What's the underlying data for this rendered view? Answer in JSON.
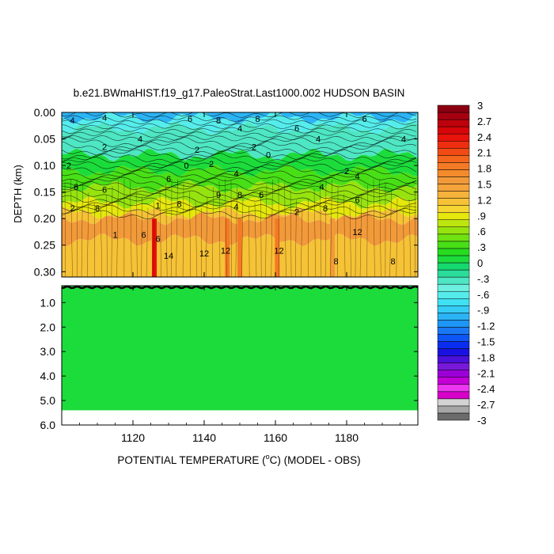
{
  "chart_data": {
    "type": "heatmap",
    "title": "b.e21.BWmaHIST.f19_g17.PaleoStrat.Last1000.002 HUDSON BASIN",
    "xlabel_pre": "POTENTIAL TEMPERATURE (",
    "xlabel_sup": "o",
    "xlabel_post": "C) (MODEL - OBS)",
    "ylabel": "DEPTH (km)",
    "xlim": [
      1100,
      1200
    ],
    "x_ticks": [
      "1120",
      "1140",
      "1160",
      "1180"
    ],
    "x_tick_values": [
      1120,
      1140,
      1160,
      1180
    ],
    "top_panel": {
      "ylim": [
        0.0,
        0.31
      ],
      "y_ticks": [
        "0.00",
        "0.05",
        "0.10",
        "0.15",
        "0.20",
        "0.25",
        "0.30"
      ],
      "y_tick_values": [
        0.0,
        0.05,
        0.1,
        0.15,
        0.2,
        0.25,
        0.3
      ],
      "layers": [
        {
          "depth_from": 0.0,
          "depth_to": 0.01,
          "value": -1.0
        },
        {
          "depth_from": 0.01,
          "depth_to": 0.03,
          "value": -0.6
        },
        {
          "depth_from": 0.03,
          "depth_to": 0.08,
          "value": -0.3
        },
        {
          "depth_from": 0.08,
          "depth_to": 0.11,
          "value": 0.0
        },
        {
          "depth_from": 0.11,
          "depth_to": 0.14,
          "value": 0.3
        },
        {
          "depth_from": 0.14,
          "depth_to": 0.17,
          "value": 0.6
        },
        {
          "depth_from": 0.17,
          "depth_to": 0.19,
          "value": 0.9
        },
        {
          "depth_from": 0.19,
          "depth_to": 0.2,
          "value": 1.2
        },
        {
          "depth_from": 0.2,
          "depth_to": 0.24,
          "value": 1.5
        },
        {
          "depth_from": 0.24,
          "depth_to": 0.31,
          "value": 1.2
        }
      ],
      "hot_columns": [
        {
          "x": 1126,
          "value": 2.4
        },
        {
          "x": 1146.5,
          "value": 1.8
        },
        {
          "x": 1150,
          "value": 1.8
        },
        {
          "x": 1160.5,
          "value": 1.8
        },
        {
          "x": 1176,
          "value": 1.5
        }
      ],
      "contour_labels": [
        {
          "text": "4",
          "x": 1103,
          "d": 0.015
        },
        {
          "text": "4",
          "x": 1112,
          "d": 0.01
        },
        {
          "text": "6",
          "x": 1136,
          "d": 0.012
        },
        {
          "text": "8",
          "x": 1144,
          "d": 0.015
        },
        {
          "text": "4",
          "x": 1150,
          "d": 0.03
        },
        {
          "text": "8",
          "x": 1155,
          "d": 0.012
        },
        {
          "text": "6",
          "x": 1166,
          "d": 0.03
        },
        {
          "text": "4",
          "x": 1172,
          "d": 0.05
        },
        {
          "text": "6",
          "x": 1185,
          "d": 0.012
        },
        {
          "text": "4",
          "x": 1196,
          "d": 0.05
        },
        {
          "text": "2",
          "x": 1112,
          "d": 0.065
        },
        {
          "text": "4",
          "x": 1122,
          "d": 0.05
        },
        {
          "text": "2",
          "x": 1138,
          "d": 0.07
        },
        {
          "text": "2",
          "x": 1154,
          "d": 0.065
        },
        {
          "text": "0",
          "x": 1158,
          "d": 0.08
        },
        {
          "text": "2",
          "x": 1102,
          "d": 0.1
        },
        {
          "text": "0",
          "x": 1135,
          "d": 0.1
        },
        {
          "text": "2",
          "x": 1142,
          "d": 0.097
        },
        {
          "text": "4",
          "x": 1149,
          "d": 0.115
        },
        {
          "text": "2",
          "x": 1180,
          "d": 0.11
        },
        {
          "text": "6",
          "x": 1104,
          "d": 0.14
        },
        {
          "text": "6",
          "x": 1130,
          "d": 0.125
        },
        {
          "text": "6",
          "x": 1112,
          "d": 0.145
        },
        {
          "text": "4",
          "x": 1183,
          "d": 0.12
        },
        {
          "text": "9",
          "x": 1144,
          "d": 0.155
        },
        {
          "text": "8",
          "x": 1150,
          "d": 0.155
        },
        {
          "text": "6",
          "x": 1156,
          "d": 0.155
        },
        {
          "text": "4",
          "x": 1173,
          "d": 0.14
        },
        {
          "text": "6",
          "x": 1183,
          "d": 0.165
        },
        {
          "text": "2",
          "x": 1103,
          "d": 0.18
        },
        {
          "text": "8",
          "x": 1110,
          "d": 0.18
        },
        {
          "text": "1",
          "x": 1127,
          "d": 0.175
        },
        {
          "text": "8",
          "x": 1133,
          "d": 0.172
        },
        {
          "text": "4",
          "x": 1149,
          "d": 0.177
        },
        {
          "text": "8",
          "x": 1174,
          "d": 0.18
        },
        {
          "text": "2",
          "x": 1166,
          "d": 0.187
        },
        {
          "text": "1",
          "x": 1115,
          "d": 0.23
        },
        {
          "text": "6",
          "x": 1123,
          "d": 0.23
        },
        {
          "text": "6",
          "x": 1127,
          "d": 0.238
        },
        {
          "text": "12",
          "x": 1183,
          "d": 0.225
        },
        {
          "text": "14",
          "x": 1130,
          "d": 0.27
        },
        {
          "text": "12",
          "x": 1140,
          "d": 0.265
        },
        {
          "text": "12",
          "x": 1146,
          "d": 0.26
        },
        {
          "text": "12",
          "x": 1161,
          "d": 0.26
        },
        {
          "text": "8",
          "x": 1177,
          "d": 0.28
        },
        {
          "text": "8",
          "x": 1193,
          "d": 0.28
        }
      ]
    },
    "bottom_panel": {
      "ylim": [
        0.31,
        6.0
      ],
      "y_ticks": [
        "1.0",
        "2.0",
        "3.0",
        "4.0",
        "5.0",
        "6.0"
      ],
      "y_tick_values": [
        1.0,
        2.0,
        3.0,
        4.0,
        5.0,
        6.0
      ],
      "fill_value": 0.1,
      "data_bottom": 5.4
    },
    "colorbar": {
      "labels": [
        "3",
        "2.7",
        "2.4",
        "2.1",
        "1.8",
        "1.5",
        "1.2",
        ".9",
        ".6",
        ".3",
        "0",
        "-.3",
        "-.6",
        "-.9",
        "-1.2",
        "-1.5",
        "-1.8",
        "-2.1",
        "-2.4",
        "-2.7",
        "-3"
      ],
      "colors": [
        "#6b6b6b",
        "#a6a6a6",
        "#d3d3d3",
        "#d600c8",
        "#ec36f0",
        "#c300d6",
        "#9b00d6",
        "#7818d8",
        "#4b10d9",
        "#1a12e0",
        "#0a2ef0",
        "#0d55f5",
        "#1a78f5",
        "#1e96f5",
        "#2bb4f5",
        "#35cdf5",
        "#3fe1f3",
        "#55edec",
        "#6ef0e0",
        "#4ee6c3",
        "#2bdc9a",
        "#15d86e",
        "#1cdc3c",
        "#27dc1e",
        "#48df17",
        "#6fe212",
        "#96e310",
        "#bde50e",
        "#e5e70d",
        "#f6d533",
        "#f6c236",
        "#f5b33a",
        "#f4a43a",
        "#f29a3a",
        "#f48a2b",
        "#f57a25",
        "#f5661c",
        "#f24a14",
        "#ef2d10",
        "#e8130a",
        "#d6060a",
        "#bd000b",
        "#a50010",
        "#8a0010"
      ]
    }
  }
}
